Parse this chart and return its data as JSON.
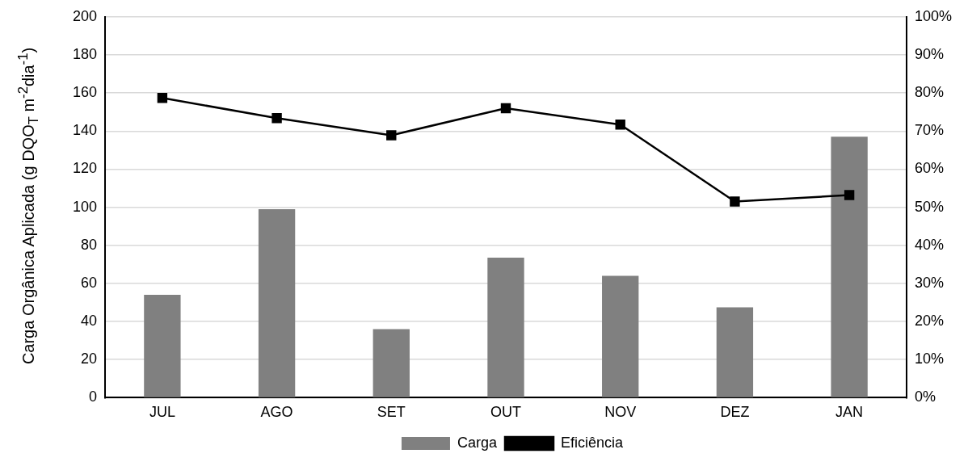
{
  "chart_data": {
    "type": "bar",
    "ylabel": "Carga Orgânica Aplicada (g DQO$_{T}$ m$^{-2}$dia$^{-1}$)",
    "categories": [
      "JUL",
      "AGO",
      "SET",
      "OUT",
      "NOV",
      "DEZ",
      "JAN"
    ],
    "series": [
      {
        "name": "Carga",
        "color": "#808080",
        "values": [
          54,
          99,
          36,
          73.5,
          64,
          47.5,
          137
        ]
      },
      {
        "name": "Eficiência",
        "type": "line",
        "axis": "y2",
        "color": "#000000",
        "marker": "square",
        "values": [
          78.7,
          73.4,
          68.9,
          76.0,
          71.7,
          51.5,
          53.2
        ]
      }
    ],
    "ylim": [
      0,
      200
    ],
    "yticks": [
      0,
      20,
      40,
      60,
      80,
      100,
      120,
      140,
      160,
      180,
      200
    ],
    "y2lim": [
      0,
      100
    ],
    "y2ticks": [
      {
        "value": 0,
        "label": "0%"
      },
      {
        "value": 10,
        "label": "10%"
      },
      {
        "value": 20,
        "label": "20%"
      },
      {
        "value": 30,
        "label": "30%"
      },
      {
        "value": 40,
        "label": "40%"
      },
      {
        "value": 50,
        "label": "50%"
      },
      {
        "value": 60,
        "label": "60%"
      },
      {
        "value": 70,
        "label": "70%"
      },
      {
        "value": 80,
        "label": "80%"
      },
      {
        "value": 90,
        "label": "90%"
      },
      {
        "value": 100,
        "label": "100%"
      }
    ],
    "grid": "y",
    "legend": "bottom"
  }
}
